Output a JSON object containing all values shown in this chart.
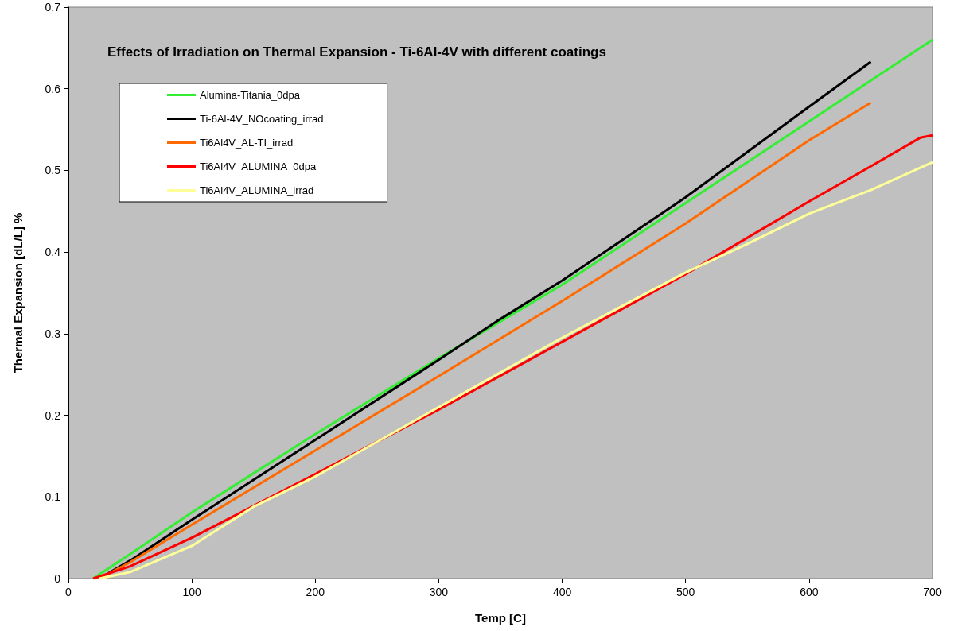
{
  "chart_data": {
    "type": "line",
    "title": "Effects of Irradiation on Thermal Expansion - Ti-6Al-4V with different coatings",
    "xlabel": "Temp [C]",
    "ylabel": "Thermal Expansion [dL/L] %",
    "xlim": [
      0,
      700
    ],
    "xticks": [
      0,
      100,
      200,
      300,
      400,
      500,
      600,
      700
    ],
    "ylim": [
      0,
      0.7
    ],
    "yticks": [
      0,
      0.1,
      0.2,
      0.3,
      0.4,
      0.5,
      0.6,
      0.7
    ],
    "grid": false,
    "legend": "top left",
    "marker": "none",
    "line_style": "solid",
    "series": [
      {
        "name": "Alumina-Titania_0dpa",
        "color": "#33ee33",
        "x": [
          20,
          50,
          100,
          200,
          300,
          400,
          500,
          600,
          700
        ],
        "values": [
          0,
          0.03,
          0.081,
          0.177,
          0.27,
          0.36,
          0.46,
          0.56,
          0.66
        ]
      },
      {
        "name": "Ti-6Al-4V_NOcoating_irrad",
        "color": "#000000",
        "x": [
          25,
          50,
          100,
          200,
          300,
          350,
          400,
          500,
          600,
          650
        ],
        "values": [
          0,
          0.022,
          0.072,
          0.17,
          0.268,
          0.318,
          0.365,
          0.467,
          0.578,
          0.633
        ]
      },
      {
        "name": "Ti6Al4V_AL-TI_irrad",
        "color": "#ff6a00",
        "x": [
          25,
          50,
          100,
          200,
          300,
          400,
          500,
          600,
          650
        ],
        "values": [
          0,
          0.02,
          0.066,
          0.157,
          0.248,
          0.34,
          0.435,
          0.537,
          0.583
        ]
      },
      {
        "name": "Ti6Al4V_ALUMINA_0dpa",
        "color": "#ff0000",
        "x": [
          20,
          50,
          100,
          200,
          300,
          400,
          500,
          600,
          650,
          690,
          700
        ],
        "values": [
          0,
          0.015,
          0.05,
          0.128,
          0.207,
          0.29,
          0.373,
          0.462,
          0.505,
          0.54,
          0.543
        ]
      },
      {
        "name": "Ti6Al4V_ALUMINA_irrad",
        "color": "#ffff99",
        "x": [
          25,
          50,
          100,
          150,
          200,
          300,
          400,
          450,
          500,
          550,
          600,
          650,
          700
        ],
        "values": [
          0,
          0.008,
          0.04,
          0.088,
          0.125,
          0.21,
          0.295,
          0.335,
          0.375,
          0.41,
          0.447,
          0.476,
          0.51
        ]
      }
    ]
  }
}
